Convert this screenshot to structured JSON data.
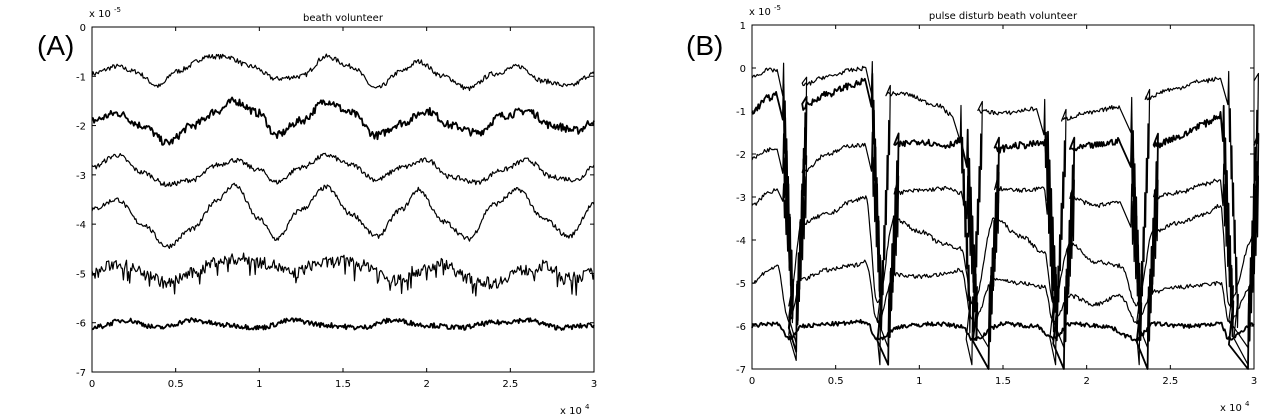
{
  "panels": [
    {
      "label": "(A)",
      "chart_data": {
        "type": "line",
        "title": "beath volunteer",
        "xlabel": "",
        "ylabel": "",
        "x_multiplier": "x 10",
        "x_multiplier_exp": "4",
        "y_multiplier": "x 10",
        "y_multiplier_exp": "-5",
        "xlim": [
          0,
          3
        ],
        "ylim": [
          -7,
          0
        ],
        "xticks": [
          "0",
          "0.5",
          "1",
          "1.5",
          "2",
          "2.5",
          "3"
        ],
        "yticks": [
          "0",
          "-1",
          "-2",
          "-3",
          "-4",
          "-5",
          "-6",
          "-7"
        ],
        "series": [
          {
            "x": [
              0,
              0.15,
              0.25,
              0.4,
              0.5,
              0.7,
              0.8,
              0.95,
              1.1,
              1.25,
              1.4,
              1.55,
              1.7,
              1.85,
              1.95,
              2.1,
              2.25,
              2.4,
              2.55,
              2.7,
              2.85,
              3
            ],
            "y": [
              -0.95,
              -0.8,
              -0.9,
              -1.2,
              -0.9,
              -0.6,
              -0.6,
              -0.8,
              -1.05,
              -1.0,
              -0.6,
              -0.8,
              -1.25,
              -0.9,
              -0.7,
              -1.0,
              -1.25,
              -0.95,
              -0.8,
              -1.1,
              -1.2,
              -0.95
            ]
          },
          {
            "x": [
              0,
              0.15,
              0.3,
              0.45,
              0.6,
              0.75,
              0.85,
              1.0,
              1.1,
              1.25,
              1.4,
              1.55,
              1.7,
              1.85,
              2.0,
              2.15,
              2.3,
              2.45,
              2.6,
              2.75,
              2.9,
              3
            ],
            "y": [
              -1.9,
              -1.75,
              -2.0,
              -2.35,
              -2.0,
              -1.7,
              -1.5,
              -1.75,
              -2.2,
              -1.9,
              -1.5,
              -1.75,
              -2.2,
              -1.95,
              -1.7,
              -2.0,
              -2.15,
              -1.8,
              -1.7,
              -2.0,
              -2.1,
              -1.9
            ]
          },
          {
            "x": [
              0,
              0.15,
              0.3,
              0.45,
              0.6,
              0.75,
              0.85,
              1.0,
              1.1,
              1.25,
              1.4,
              1.55,
              1.7,
              1.85,
              2.0,
              2.15,
              2.3,
              2.45,
              2.6,
              2.75,
              2.9,
              3
            ],
            "y": [
              -2.85,
              -2.6,
              -2.95,
              -3.2,
              -3.1,
              -2.8,
              -2.7,
              -2.9,
              -3.15,
              -2.85,
              -2.6,
              -2.8,
              -3.1,
              -2.85,
              -2.7,
              -3.05,
              -3.15,
              -2.9,
              -2.7,
              -3.05,
              -3.1,
              -2.8
            ]
          },
          {
            "x": [
              0,
              0.15,
              0.3,
              0.45,
              0.6,
              0.75,
              0.85,
              1.0,
              1.1,
              1.25,
              1.4,
              1.55,
              1.7,
              1.85,
              1.95,
              2.1,
              2.25,
              2.4,
              2.55,
              2.7,
              2.85,
              3
            ],
            "y": [
              -3.7,
              -3.5,
              -4.0,
              -4.45,
              -4.1,
              -3.5,
              -3.2,
              -3.9,
              -4.3,
              -3.7,
              -3.25,
              -3.8,
              -4.25,
              -3.7,
              -3.3,
              -3.95,
              -4.3,
              -3.6,
              -3.3,
              -3.9,
              -4.25,
              -3.6
            ]
          },
          {
            "x": [
              0,
              0.15,
              0.3,
              0.45,
              0.6,
              0.75,
              0.9,
              1.05,
              1.2,
              1.35,
              1.5,
              1.65,
              1.8,
              1.95,
              2.1,
              2.25,
              2.4,
              2.55,
              2.7,
              2.85,
              3
            ],
            "y": [
              -5.0,
              -4.8,
              -4.95,
              -5.2,
              -5.0,
              -4.75,
              -4.7,
              -4.8,
              -5.0,
              -4.8,
              -4.75,
              -4.85,
              -5.15,
              -4.95,
              -4.8,
              -5.1,
              -5.2,
              -4.95,
              -4.85,
              -5.1,
              -5.0
            ]
          },
          {
            "x": [
              0,
              0.2,
              0.4,
              0.6,
              0.8,
              1.0,
              1.2,
              1.4,
              1.6,
              1.8,
              2.0,
              2.2,
              2.4,
              2.6,
              2.8,
              3
            ],
            "y": [
              -6.1,
              -5.95,
              -6.1,
              -5.95,
              -6.05,
              -6.1,
              -5.95,
              -6.05,
              -6.1,
              -5.95,
              -6.05,
              -6.1,
              -6.0,
              -5.95,
              -6.1,
              -6.05
            ]
          }
        ]
      }
    },
    {
      "label": "(B)",
      "chart_data": {
        "type": "line",
        "title": "pulse disturb beath volunteer",
        "xlabel": "",
        "ylabel": "",
        "x_multiplier": "x 10",
        "x_multiplier_exp": "4",
        "y_multiplier": "x 10",
        "y_multiplier_exp": "-5",
        "xlim": [
          0,
          3
        ],
        "ylim": [
          -7,
          1
        ],
        "xticks": [
          "0",
          "0.5",
          "1",
          "1.5",
          "2",
          "2.5",
          "3"
        ],
        "yticks": [
          "1",
          "0",
          "-1",
          "-2",
          "-3",
          "-4",
          "-5",
          "-6",
          "-7"
        ],
        "series": [
          {
            "x": [
              0,
              0.1,
              0.15,
              0.22,
              0.3,
              0.45,
              0.6,
              0.68,
              0.75,
              0.8,
              0.9,
              1.1,
              1.2,
              1.28,
              1.35,
              1.5,
              1.7,
              1.78,
              1.85,
              2.0,
              2.2,
              2.3,
              2.35,
              2.5,
              2.7,
              2.8,
              2.88,
              3
            ],
            "y": [
              -0.2,
              -0.05,
              -0.05,
              -6.2,
              -0.4,
              -0.2,
              -0.05,
              0.0,
              -6.3,
              -0.6,
              -0.6,
              -0.85,
              -1.1,
              -6.3,
              -1.0,
              -1.05,
              -0.95,
              -6.3,
              -1.2,
              -1.05,
              -0.9,
              -6.3,
              -0.7,
              -0.5,
              -0.3,
              -0.25,
              -6.3,
              -0.3
            ]
          },
          {
            "x": [
              0,
              0.1,
              0.15,
              0.22,
              0.3,
              0.45,
              0.6,
              0.68,
              0.75,
              0.85,
              1.0,
              1.15,
              1.25,
              1.32,
              1.45,
              1.6,
              1.75,
              1.8,
              1.9,
              2.05,
              2.2,
              2.3,
              2.4,
              2.55,
              2.7,
              2.8,
              2.85,
              3
            ],
            "y": [
              -1.0,
              -0.7,
              -0.6,
              -6.0,
              -0.9,
              -0.6,
              -0.4,
              -0.3,
              -6.3,
              -1.8,
              -1.7,
              -1.8,
              -1.7,
              -6.4,
              -1.9,
              -1.8,
              -1.75,
              -6.4,
              -1.9,
              -1.8,
              -1.7,
              -6.4,
              -1.8,
              -1.6,
              -1.3,
              -1.1,
              -6.4,
              -1.8
            ]
          },
          {
            "x": [
              0,
              0.1,
              0.15,
              0.22,
              0.3,
              0.45,
              0.6,
              0.68,
              0.75,
              0.85,
              1.0,
              1.15,
              1.25,
              1.32,
              1.45,
              1.6,
              1.75,
              1.8,
              1.9,
              2.05,
              2.2,
              2.3,
              2.4,
              2.55,
              2.7,
              2.8,
              2.85,
              3
            ],
            "y": [
              -2.1,
              -1.9,
              -1.85,
              -5.8,
              -2.4,
              -2.0,
              -1.8,
              -1.8,
              -5.9,
              -2.9,
              -2.85,
              -2.8,
              -2.9,
              -5.9,
              -2.8,
              -2.85,
              -2.8,
              -5.9,
              -3.0,
              -3.2,
              -3.1,
              -5.9,
              -3.0,
              -2.9,
              -2.7,
              -2.6,
              -5.9,
              -2.9
            ]
          },
          {
            "x": [
              0,
              0.1,
              0.15,
              0.22,
              0.3,
              0.45,
              0.6,
              0.68,
              0.75,
              0.85,
              1.0,
              1.15,
              1.25,
              1.32,
              1.45,
              1.6,
              1.75,
              1.8,
              1.9,
              2.05,
              2.2,
              2.3,
              2.4,
              2.55,
              2.7,
              2.8,
              2.85,
              3
            ],
            "y": [
              -3.2,
              -2.9,
              -2.8,
              -5.5,
              -3.6,
              -3.4,
              -3.1,
              -3.0,
              -5.5,
              -3.5,
              -3.8,
              -4.1,
              -4.2,
              -5.5,
              -3.5,
              -3.9,
              -4.3,
              -5.5,
              -4.1,
              -4.5,
              -4.6,
              -5.5,
              -3.8,
              -3.6,
              -3.4,
              -3.2,
              -5.5,
              -3.9
            ]
          },
          {
            "x": [
              0,
              0.1,
              0.15,
              0.22,
              0.3,
              0.45,
              0.6,
              0.68,
              0.75,
              0.85,
              1.0,
              1.15,
              1.25,
              1.32,
              1.45,
              1.6,
              1.75,
              1.8,
              1.9,
              2.05,
              2.2,
              2.3,
              2.4,
              2.55,
              2.7,
              2.8,
              2.85,
              3
            ],
            "y": [
              -5.0,
              -4.7,
              -4.6,
              -5.9,
              -4.9,
              -4.7,
              -4.6,
              -4.5,
              -5.9,
              -4.8,
              -4.85,
              -4.8,
              -4.7,
              -5.9,
              -4.9,
              -5.0,
              -5.1,
              -5.9,
              -5.3,
              -5.5,
              -5.3,
              -5.9,
              -5.2,
              -5.1,
              -5.05,
              -5.0,
              -5.9,
              -5.0
            ]
          },
          {
            "x": [
              0,
              0.1,
              0.15,
              0.22,
              0.3,
              0.5,
              0.68,
              0.75,
              0.9,
              1.1,
              1.25,
              1.32,
              1.5,
              1.7,
              1.8,
              1.9,
              2.1,
              2.3,
              2.4,
              2.6,
              2.8,
              2.85,
              3
            ],
            "y": [
              -6.0,
              -5.95,
              -5.95,
              -6.3,
              -6.0,
              -5.95,
              -5.9,
              -6.3,
              -6.0,
              -5.95,
              -6.0,
              -6.3,
              -5.95,
              -6.0,
              -6.3,
              -5.95,
              -6.0,
              -6.3,
              -5.95,
              -6.0,
              -5.95,
              -6.3,
              -5.95
            ]
          }
        ]
      }
    }
  ]
}
